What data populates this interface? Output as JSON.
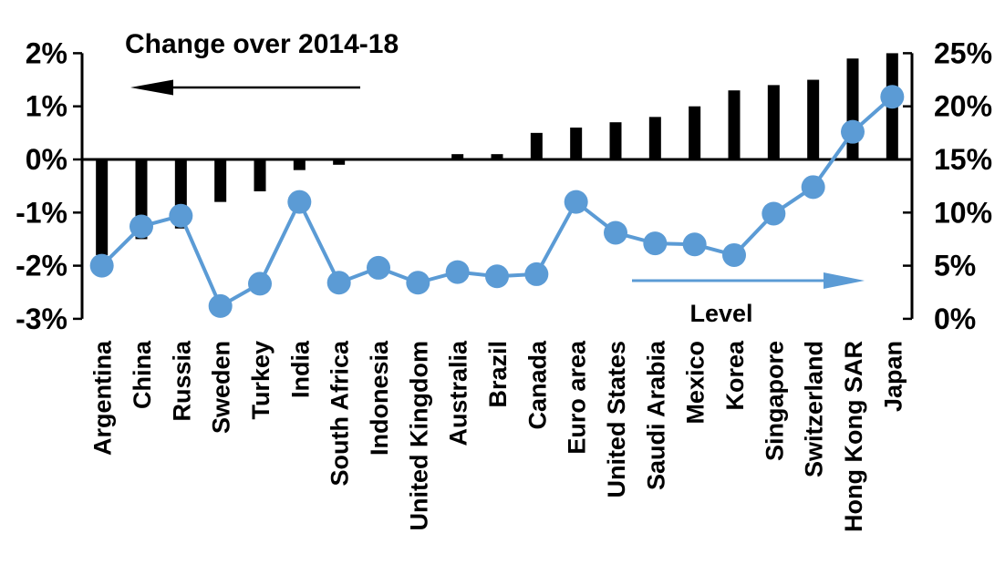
{
  "chart_data": {
    "type": "bar+line",
    "title": "Change over 2014-18",
    "categories": [
      "Argentina",
      "China",
      "Russia",
      "Sweden",
      "Turkey",
      "India",
      "South Africa",
      "Indonesia",
      "United Kingdom",
      "Australia",
      "Brazil",
      "Canada",
      "Euro area",
      "United States",
      "Saudi Arabia",
      "Mexico",
      "Korea",
      "Singapore",
      "Switzerland",
      "Hong Kong SAR",
      "Japan"
    ],
    "series": [
      {
        "name": "Change over 2014-18",
        "type": "bar",
        "axis": "left",
        "color": "#000000",
        "values": [
          -1.8,
          -1.5,
          -1.3,
          -0.8,
          -0.6,
          -0.2,
          -0.1,
          0.0,
          0.0,
          0.1,
          0.1,
          0.5,
          0.6,
          0.7,
          0.8,
          1.0,
          1.3,
          1.4,
          1.5,
          1.9,
          2.0
        ]
      },
      {
        "name": "Level",
        "type": "line",
        "axis": "right",
        "color": "#5B9BD5",
        "values": [
          5.0,
          8.7,
          9.7,
          1.2,
          3.3,
          11.0,
          3.4,
          4.8,
          3.4,
          4.4,
          4.0,
          4.2,
          11.0,
          8.1,
          7.1,
          7.0,
          6.0,
          9.9,
          12.4,
          17.6,
          20.9
        ]
      }
    ],
    "left_axis": {
      "tick_labels": [
        "2%",
        "1%",
        "0%",
        "-1%",
        "-2%",
        "-3%"
      ],
      "tick_values": [
        2,
        1,
        0,
        -1,
        -2,
        -3
      ],
      "range": [
        -3,
        2
      ]
    },
    "right_axis": {
      "tick_labels": [
        "25%",
        "20%",
        "15%",
        "10%",
        "5%",
        "0%"
      ],
      "tick_values": [
        25,
        20,
        15,
        10,
        5,
        0
      ],
      "range": [
        0,
        25
      ]
    },
    "annotations": [
      {
        "text": "Change over 2014-18",
        "arrow": "left",
        "color": "#000000"
      },
      {
        "text": "Level",
        "arrow": "right",
        "color": "#5B9BD5"
      }
    ],
    "grid": false,
    "legend": "none"
  }
}
